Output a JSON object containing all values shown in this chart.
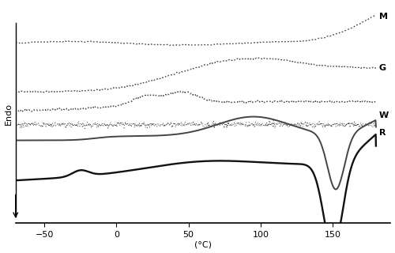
{
  "title": "",
  "xlabel": "(°C)",
  "ylabel": "Endo",
  "xlim": [
    -70,
    180
  ],
  "ylim": [
    -9,
    9
  ],
  "xticks": [
    -50,
    0,
    50,
    100,
    150
  ],
  "background_color": "#ffffff",
  "text_color": "#000000",
  "curve_color": "#444444",
  "curve_color_dark": "#111111"
}
